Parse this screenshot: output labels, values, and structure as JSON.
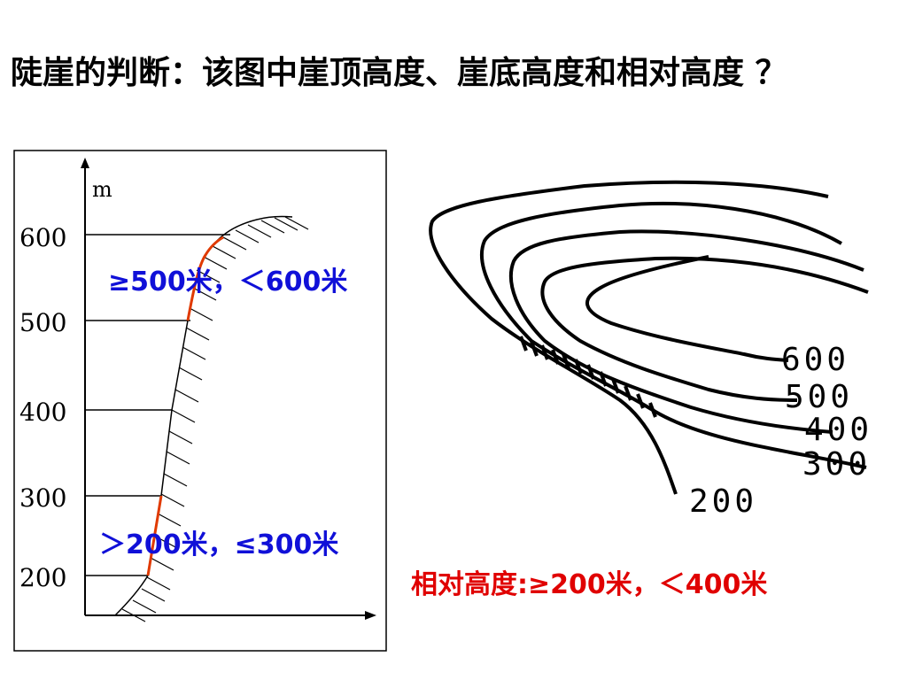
{
  "title": "陡崖的判断：该图中崖顶高度、崖底高度和相对高度 ？",
  "profile": {
    "unit_label": "m",
    "y_ticks": [
      "600",
      "500",
      "400",
      "300",
      "200"
    ],
    "top_range": "≥500米，＜600米",
    "bottom_range": "＞200米，≤300米"
  },
  "contour_map": {
    "labels": [
      "600",
      "500",
      "400",
      "300",
      "200"
    ],
    "relative_height": "相对高度:≥200米，＜400米"
  },
  "colors": {
    "accent": "#e00000",
    "annotation_blue": "#1010d8"
  }
}
